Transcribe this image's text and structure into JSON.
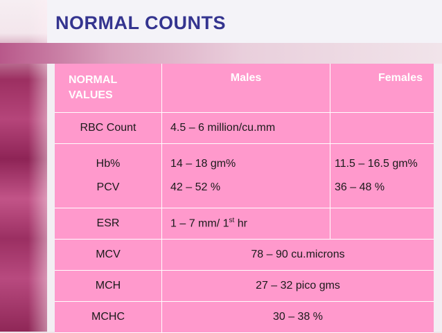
{
  "slide": {
    "title": "NORMAL COUNTS"
  },
  "colors": {
    "title": "#34348f",
    "table_fill": "#ff99cc",
    "header_text": "#ffffff"
  },
  "table": {
    "headers": {
      "col1_line1": "NORMAL",
      "col1_line2": "VALUES",
      "col2": "Males",
      "col3": "Females"
    },
    "rows": {
      "rbc": {
        "label": "RBC Count",
        "males": "4.5 – 6 million/cu.mm",
        "females": ""
      },
      "hb": {
        "label": "Hb%",
        "males": "14 – 18 gm%",
        "females": "11.5 – 16.5 gm%"
      },
      "pcv": {
        "label": "PCV",
        "males": "42 – 52 %",
        "females": "36 – 48 %"
      },
      "esr": {
        "label": "ESR",
        "males_prefix": "1 – 7 mm/ 1",
        "males_sup": "st",
        "males_suffix": " hr",
        "females": ""
      },
      "mcv": {
        "label": "MCV",
        "value": "78 – 90 cu.microns"
      },
      "mch": {
        "label": "MCH",
        "value": "27 – 32 pico gms"
      },
      "mchc": {
        "label": "MCHC",
        "value": "30 – 38 %"
      }
    }
  }
}
